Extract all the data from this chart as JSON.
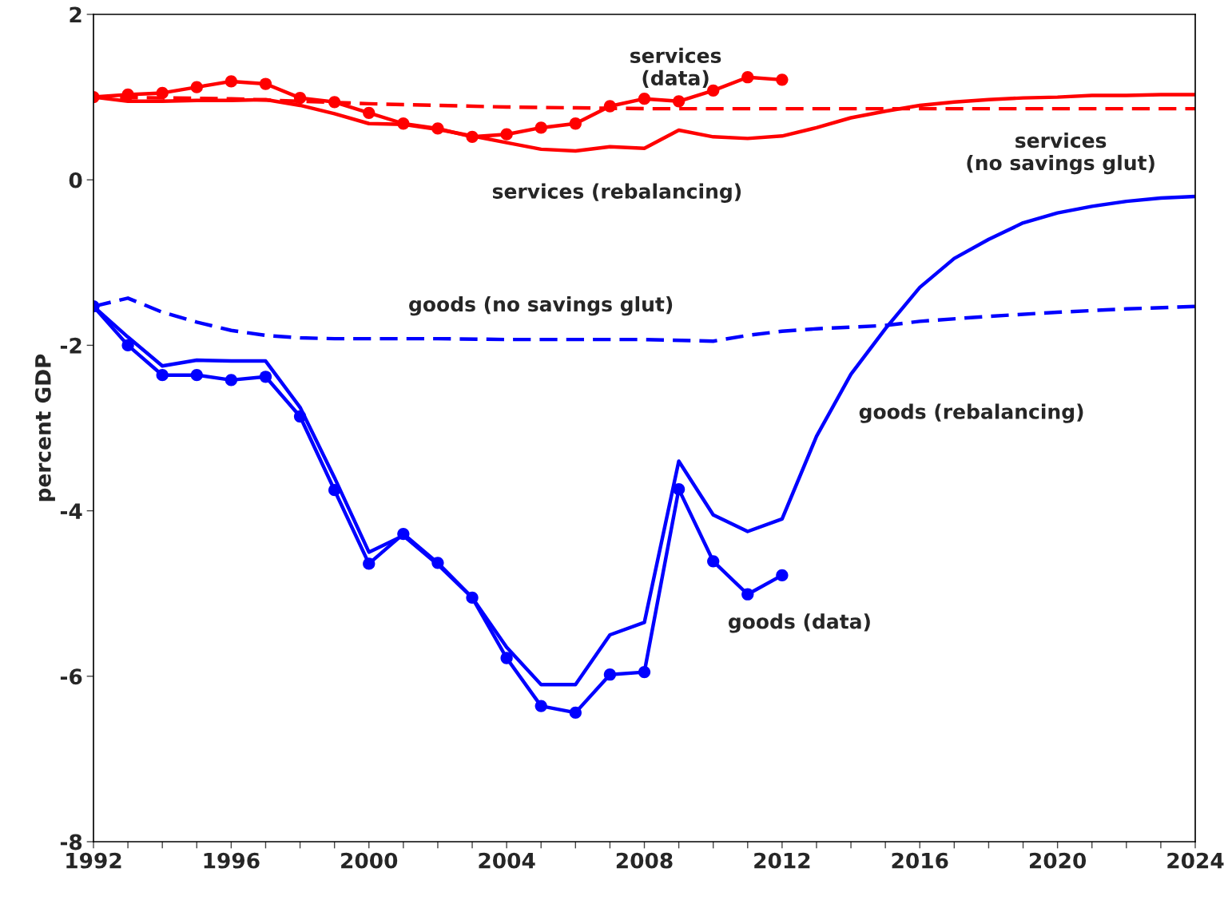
{
  "chart_data": {
    "type": "line",
    "ylabel": "percent GDP",
    "xlim": [
      1992,
      2024
    ],
    "ylim": [
      -8,
      2
    ],
    "xticks": [
      1992,
      {
        "value": 1993,
        "label": null
      },
      {
        "value": 1994,
        "label": null
      },
      {
        "value": 1995,
        "label": null
      },
      1996,
      {
        "value": 1997,
        "label": null
      },
      {
        "value": 1998,
        "label": null
      },
      {
        "value": 1999,
        "label": null
      },
      2000,
      {
        "value": 2001,
        "label": null
      },
      {
        "value": 2002,
        "label": null
      },
      {
        "value": 2003,
        "label": null
      },
      2004,
      {
        "value": 2005,
        "label": null
      },
      {
        "value": 2006,
        "label": null
      },
      {
        "value": 2007,
        "label": null
      },
      2008,
      {
        "value": 2009,
        "label": null
      },
      {
        "value": 2010,
        "label": null
      },
      {
        "value": 2011,
        "label": null
      },
      2012,
      {
        "value": 2013,
        "label": null
      },
      {
        "value": 2014,
        "label": null
      },
      {
        "value": 2015,
        "label": null
      },
      2016,
      {
        "value": 2017,
        "label": null
      },
      {
        "value": 2018,
        "label": null
      },
      {
        "value": 2019,
        "label": null
      },
      2020,
      {
        "value": 2021,
        "label": null
      },
      {
        "value": 2022,
        "label": null
      },
      {
        "value": 2023,
        "label": null
      },
      2024
    ],
    "yticks": [
      -8,
      -6,
      -4,
      -2,
      0,
      2
    ],
    "grid": false,
    "legend": false,
    "series": [
      {
        "name": "services\n(data)",
        "color": "#ff0000",
        "line_style": "solid",
        "marker": "circle",
        "x": [
          1992,
          1993,
          1994,
          1995,
          1996,
          1997,
          1998,
          1999,
          2000,
          2001,
          2002,
          2003,
          2004,
          2005,
          2006,
          2007,
          2008,
          2009,
          2010,
          2011,
          2012
        ],
        "values": [
          1.0,
          1.03,
          1.05,
          1.12,
          1.19,
          1.16,
          0.99,
          0.94,
          0.81,
          0.68,
          0.62,
          0.52,
          0.55,
          0.63,
          0.68,
          0.89,
          0.98,
          0.95,
          1.08,
          1.24,
          1.21
        ]
      },
      {
        "name": "services (rebalancing)",
        "color": "#ff0000",
        "line_style": "solid",
        "marker": "none",
        "x": [
          1992,
          1993,
          1994,
          1995,
          1996,
          1997,
          1998,
          1999,
          2000,
          2001,
          2002,
          2003,
          2004,
          2005,
          2006,
          2007,
          2008,
          2009,
          2010,
          2011,
          2012,
          2013,
          2014,
          2015,
          2016,
          2017,
          2018,
          2019,
          2020,
          2021,
          2022,
          2023,
          2024
        ],
        "values": [
          1.0,
          0.95,
          0.95,
          0.96,
          0.96,
          0.97,
          0.9,
          0.8,
          0.68,
          0.67,
          0.61,
          0.53,
          0.45,
          0.37,
          0.35,
          0.4,
          0.38,
          0.6,
          0.52,
          0.5,
          0.53,
          0.63,
          0.75,
          0.83,
          0.9,
          0.94,
          0.97,
          0.99,
          1.0,
          1.02,
          1.02,
          1.03,
          1.03
        ]
      },
      {
        "name": "services\n(no savings glut)",
        "color": "#ff0000",
        "line_style": "dashed",
        "marker": "none",
        "x": [
          1992,
          1994,
          1996,
          1998,
          2000,
          2002,
          2004,
          2006,
          2008,
          2010,
          2012,
          2014,
          2016,
          2018,
          2020,
          2022,
          2024
        ],
        "values": [
          1.0,
          0.99,
          0.98,
          0.95,
          0.92,
          0.9,
          0.88,
          0.87,
          0.86,
          0.86,
          0.86,
          0.86,
          0.86,
          0.86,
          0.86,
          0.86,
          0.86
        ]
      },
      {
        "name": "goods (data)",
        "color": "#0000ff",
        "line_style": "solid",
        "marker": "circle",
        "x": [
          1992,
          1993,
          1994,
          1995,
          1996,
          1997,
          1998,
          1999,
          2000,
          2001,
          2002,
          2003,
          2004,
          2005,
          2006,
          2007,
          2008,
          2009,
          2010,
          2011,
          2012
        ],
        "values": [
          -1.53,
          -2.0,
          -2.36,
          -2.36,
          -2.42,
          -2.38,
          -2.86,
          -3.75,
          -4.64,
          -4.28,
          -4.63,
          -5.05,
          -5.78,
          -6.36,
          -6.44,
          -5.98,
          -5.95,
          -3.74,
          -4.61,
          -5.01,
          -4.78
        ]
      },
      {
        "name": "goods (rebalancing)",
        "color": "#0000ff",
        "line_style": "solid",
        "marker": "none",
        "x": [
          1992,
          1993,
          1994,
          1995,
          1996,
          1997,
          1998,
          1999,
          2000,
          2001,
          2002,
          2003,
          2004,
          2005,
          2006,
          2007,
          2008,
          2009,
          2010,
          2011,
          2012,
          2013,
          2014,
          2015,
          2016,
          2017,
          2018,
          2019,
          2020,
          2021,
          2022,
          2023,
          2024
        ],
        "values": [
          -1.53,
          -1.9,
          -2.25,
          -2.18,
          -2.19,
          -2.19,
          -2.75,
          -3.6,
          -4.5,
          -4.3,
          -4.65,
          -5.05,
          -5.65,
          -6.1,
          -6.1,
          -5.5,
          -5.35,
          -3.4,
          -4.05,
          -4.25,
          -4.1,
          -3.1,
          -2.35,
          -1.8,
          -1.3,
          -0.95,
          -0.72,
          -0.52,
          -0.4,
          -0.32,
          -0.26,
          -0.22,
          -0.2
        ]
      },
      {
        "name": "goods (no savings glut)",
        "color": "#0000ff",
        "line_style": "dashed",
        "marker": "none",
        "x": [
          1992,
          1993,
          1994,
          1995,
          1996,
          1997,
          1998,
          1999,
          2000,
          2002,
          2004,
          2006,
          2008,
          2010,
          2011,
          2012,
          2013,
          2014,
          2015,
          2016,
          2018,
          2020,
          2022,
          2024
        ],
        "values": [
          -1.53,
          -1.43,
          -1.6,
          -1.72,
          -1.82,
          -1.88,
          -1.91,
          -1.92,
          -1.92,
          -1.92,
          -1.93,
          -1.93,
          -1.93,
          -1.95,
          -1.88,
          -1.83,
          -1.8,
          -1.78,
          -1.76,
          -1.71,
          -1.65,
          -1.6,
          -1.56,
          -1.53
        ]
      }
    ]
  }
}
